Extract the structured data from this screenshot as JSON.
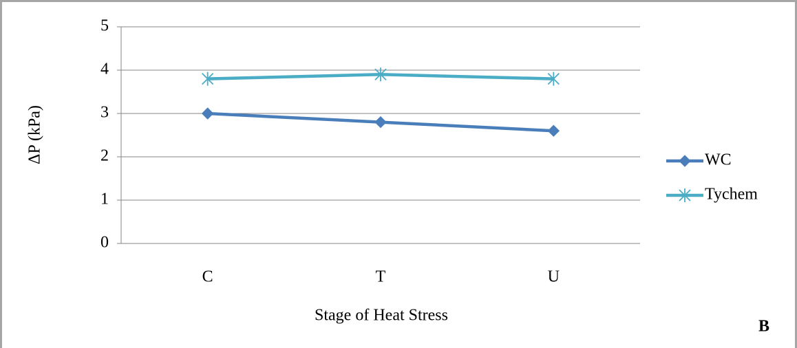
{
  "chart_data": {
    "type": "line",
    "categories": [
      "C",
      "T",
      "U"
    ],
    "series": [
      {
        "name": "WC",
        "color": "#4a7ebb",
        "marker": "diamond",
        "values": [
          3.0,
          2.8,
          2.6
        ]
      },
      {
        "name": "Tychem",
        "color": "#4bacc6",
        "marker": "asterisk",
        "values": [
          3.8,
          3.9,
          3.8
        ]
      }
    ],
    "ylabel": "ΔP (kPa)",
    "xlabel": "Stage of Heat Stress",
    "annotation": "B",
    "ylim": [
      0,
      5
    ],
    "yticks": [
      0,
      1,
      2,
      3,
      4,
      5
    ],
    "grid": true,
    "legend": "right"
  }
}
